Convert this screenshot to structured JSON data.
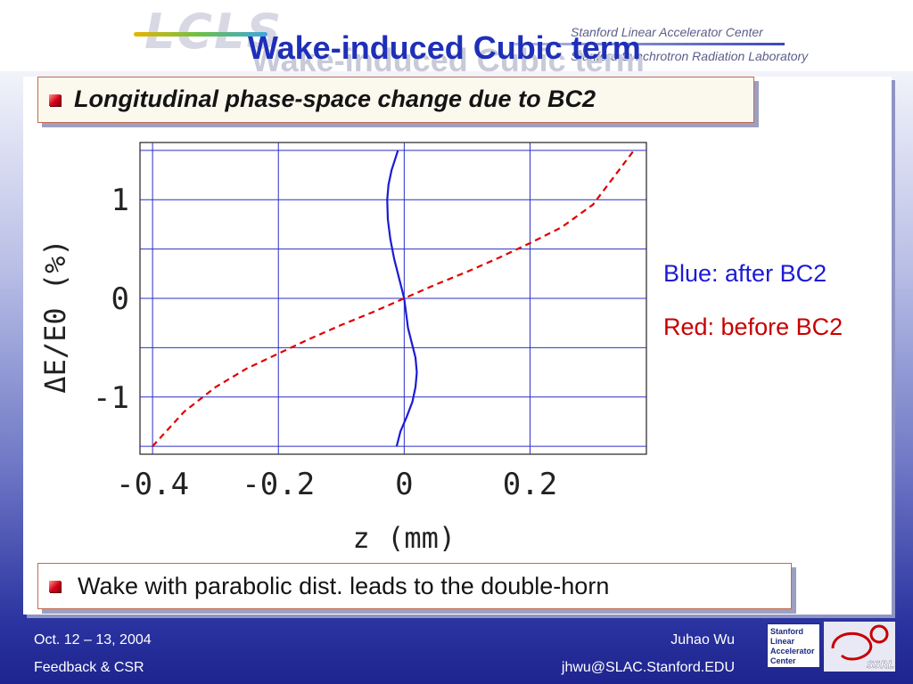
{
  "header": {
    "lcls_logo_text": "LCLS",
    "org_line1": "Stanford Linear Accelerator Center",
    "org_line2": "Stanford Synchrotron Radiation Laboratory",
    "slide_title": "Wake-induced Cubic term"
  },
  "callout_top": "Longitudinal phase-space change due to BC2",
  "callout_bottom": "Wake with parabolic dist. leads to the double-horn",
  "legend": {
    "blue": "Blue: after BC2",
    "red": "Red: before BC2",
    "blue_color": "#1b1bd4",
    "red_color": "#e00000"
  },
  "chart_data": {
    "type": "line",
    "xlabel": "z  (mm)",
    "ylabel": "ΔE/E0  (%)",
    "xlim": [
      -0.42,
      0.385
    ],
    "ylim": [
      -1.58,
      1.58
    ],
    "xticks": [
      -0.4,
      -0.2,
      0,
      0.2
    ],
    "xtick_labels": [
      "-0.4",
      "-0.2",
      "0",
      "0.2"
    ],
    "yticks": [
      -1,
      0,
      1
    ],
    "ytick_labels": [
      "-1",
      "0",
      "1"
    ],
    "grid": true,
    "series": [
      {
        "name": "after BC2",
        "color": "#1b1bd4",
        "style": "solid",
        "x": [
          -0.012,
          -0.006,
          0.004,
          0.013,
          0.018,
          0.02,
          0.018,
          0.012,
          0.006,
          0,
          -0.008,
          -0.016,
          -0.022,
          -0.026,
          -0.027,
          -0.025,
          -0.02,
          -0.014,
          -0.01
        ],
        "y": [
          -1.5,
          -1.35,
          -1.2,
          -1.05,
          -0.9,
          -0.75,
          -0.6,
          -0.45,
          -0.3,
          0,
          0.2,
          0.4,
          0.6,
          0.8,
          1.0,
          1.15,
          1.3,
          1.42,
          1.5
        ]
      },
      {
        "name": "before BC2",
        "color": "#e00000",
        "style": "dashed",
        "x": [
          -0.4,
          -0.35,
          -0.3,
          -0.25,
          -0.2,
          -0.15,
          -0.1,
          -0.05,
          0,
          0.05,
          0.1,
          0.15,
          0.2,
          0.25,
          0.3,
          0.365
        ],
        "y": [
          -1.5,
          -1.15,
          -0.9,
          -0.71,
          -0.56,
          -0.41,
          -0.27,
          -0.14,
          0,
          0.14,
          0.27,
          0.41,
          0.56,
          0.72,
          0.95,
          1.5
        ]
      }
    ]
  },
  "footer": {
    "date": "Oct. 12 – 13, 2004",
    "subtitle": "Feedback & CSR",
    "author": "Juhao Wu",
    "email": "jhwu@SLAC.Stanford.EDU",
    "slac_logo_lines": [
      "Stanford",
      "Linear",
      "Accelerator",
      "Center"
    ],
    "ssrl_logo_text": "SSRL"
  }
}
